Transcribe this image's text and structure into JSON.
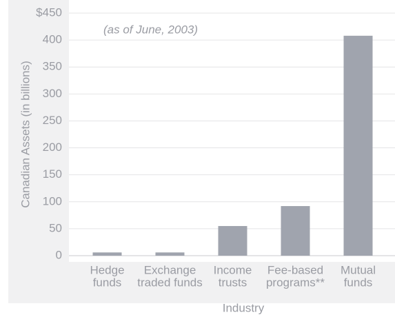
{
  "chart_data": {
    "type": "bar",
    "annotation": "(as of June, 2003)",
    "ylabel": "Canadian Assets (in billions)",
    "xlabel": "Industry",
    "categories": [
      [
        "Hedge",
        "funds"
      ],
      [
        "Exchange",
        "traded funds"
      ],
      [
        "Income",
        "trusts"
      ],
      [
        "Fee-based",
        "programs**"
      ],
      [
        "Mutual",
        "funds"
      ]
    ],
    "values": [
      6,
      6,
      55,
      92,
      408
    ],
    "color": "#a0a4ae",
    "ylim": [
      0,
      450
    ],
    "yticks": [
      0,
      50,
      100,
      150,
      200,
      250,
      300,
      350,
      400,
      {
        "value": 450,
        "label": "$450"
      }
    ],
    "grid": true
  }
}
